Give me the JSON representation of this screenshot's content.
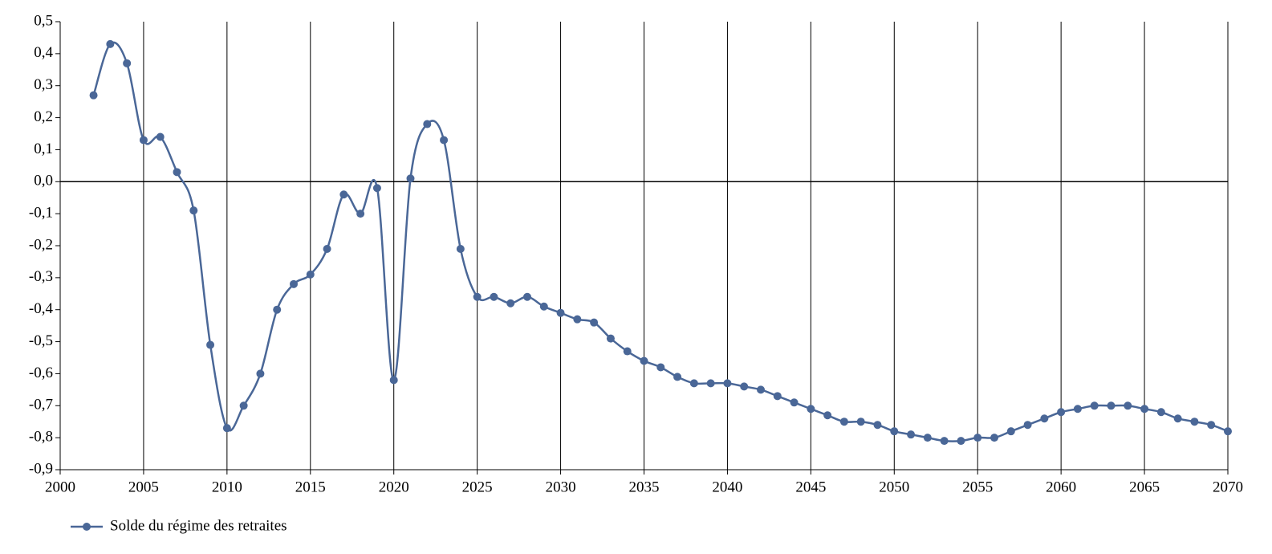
{
  "chart_data": {
    "type": "line",
    "x": [
      2002,
      2003,
      2004,
      2005,
      2006,
      2007,
      2008,
      2009,
      2010,
      2011,
      2012,
      2013,
      2014,
      2015,
      2016,
      2017,
      2018,
      2019,
      2020,
      2021,
      2022,
      2023,
      2024,
      2025,
      2026,
      2027,
      2028,
      2029,
      2030,
      2031,
      2032,
      2033,
      2034,
      2035,
      2036,
      2037,
      2038,
      2039,
      2040,
      2041,
      2042,
      2043,
      2044,
      2045,
      2046,
      2047,
      2048,
      2049,
      2050,
      2051,
      2052,
      2053,
      2054,
      2055,
      2056,
      2057,
      2058,
      2059,
      2060,
      2061,
      2062,
      2063,
      2064,
      2065,
      2066,
      2067,
      2068,
      2069,
      2070
    ],
    "series": [
      {
        "name": "Solde du régime des retraites",
        "color": "#4a6797",
        "values": [
          0.27,
          0.43,
          0.37,
          0.13,
          0.14,
          0.03,
          -0.09,
          -0.51,
          -0.77,
          -0.7,
          -0.6,
          -0.4,
          -0.32,
          -0.29,
          -0.21,
          -0.04,
          -0.1,
          -0.02,
          -0.62,
          0.01,
          0.18,
          0.13,
          -0.21,
          -0.36,
          -0.36,
          -0.38,
          -0.36,
          -0.39,
          -0.41,
          -0.43,
          -0.44,
          -0.49,
          -0.53,
          -0.56,
          -0.58,
          -0.61,
          -0.63,
          -0.63,
          -0.63,
          -0.64,
          -0.65,
          -0.67,
          -0.69,
          -0.71,
          -0.73,
          -0.75,
          -0.75,
          -0.76,
          -0.78,
          -0.79,
          -0.8,
          -0.81,
          -0.81,
          -0.8,
          -0.8,
          -0.78,
          -0.76,
          -0.74,
          -0.72,
          -0.71,
          -0.7,
          -0.7,
          -0.7,
          -0.71,
          -0.72,
          -0.74,
          -0.75,
          -0.76,
          -0.78
        ]
      }
    ],
    "xlim": [
      2000,
      2070
    ],
    "xticks": [
      2000,
      2005,
      2010,
      2015,
      2020,
      2025,
      2030,
      2035,
      2040,
      2045,
      2050,
      2055,
      2060,
      2065,
      2070
    ],
    "ylim": [
      -0.9,
      0.5
    ],
    "yticks": [
      {
        "value": -0.9,
        "label": "-0,9"
      },
      {
        "value": -0.8,
        "label": "-0,8"
      },
      {
        "value": -0.7,
        "label": "-0,7"
      },
      {
        "value": -0.6,
        "label": "-0,6"
      },
      {
        "value": -0.5,
        "label": "-0,5"
      },
      {
        "value": -0.4,
        "label": "-0,4"
      },
      {
        "value": -0.3,
        "label": "-0,3"
      },
      {
        "value": -0.2,
        "label": "-0,2"
      },
      {
        "value": -0.1,
        "label": "-0,1"
      },
      {
        "value": 0,
        "label": "0,0"
      },
      {
        "value": 0.1,
        "label": "0,1"
      },
      {
        "value": 0.2,
        "label": "0,2"
      },
      {
        "value": 0.3,
        "label": "0,3"
      },
      {
        "value": 0.4,
        "label": "0,4"
      },
      {
        "value": 0.5,
        "label": "0,5"
      }
    ],
    "grid": "x",
    "legend": "bottom-left"
  }
}
